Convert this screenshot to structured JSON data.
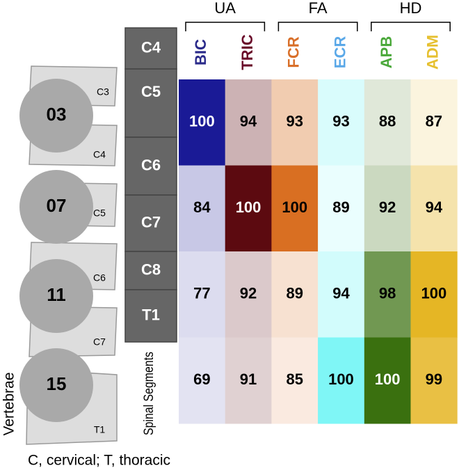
{
  "chart_data": {
    "type": "heatmap",
    "columns": [
      "BIC",
      "TRIC",
      "FCR",
      "ECR",
      "APB",
      "ADM"
    ],
    "column_colors": [
      "#1a1a96",
      "#5c0a10",
      "#d96f22",
      "#7ff6f6",
      "#3a700f",
      "#e5b625"
    ],
    "label_colors": [
      "#2a2a8a",
      "#6a0a2a",
      "#d9702a",
      "#5aa8e8",
      "#4aa83a",
      "#e6c030"
    ],
    "groups": [
      {
        "name": "UA",
        "span": [
          0,
          1
        ]
      },
      {
        "name": "FA",
        "span": [
          2,
          3
        ]
      },
      {
        "name": "HD",
        "span": [
          4,
          5
        ]
      }
    ],
    "values": [
      [
        100,
        94,
        93,
        93,
        88,
        87
      ],
      [
        84,
        100,
        100,
        89,
        92,
        94
      ],
      [
        77,
        92,
        89,
        94,
        98,
        100
      ],
      [
        69,
        91,
        85,
        100,
        100,
        99
      ]
    ]
  },
  "segments": {
    "labels": [
      "C4",
      "C5",
      "C6",
      "C7",
      "C8",
      "T1"
    ],
    "caption": "Spinal Segments"
  },
  "vertebrae": {
    "circles": [
      "03",
      "07",
      "11",
      "15"
    ],
    "labels": [
      "C3",
      "C4",
      "C5",
      "C6",
      "C7",
      "T1"
    ],
    "caption": "Vertebrae"
  },
  "footnote": "C, cervical; T, thoracic"
}
